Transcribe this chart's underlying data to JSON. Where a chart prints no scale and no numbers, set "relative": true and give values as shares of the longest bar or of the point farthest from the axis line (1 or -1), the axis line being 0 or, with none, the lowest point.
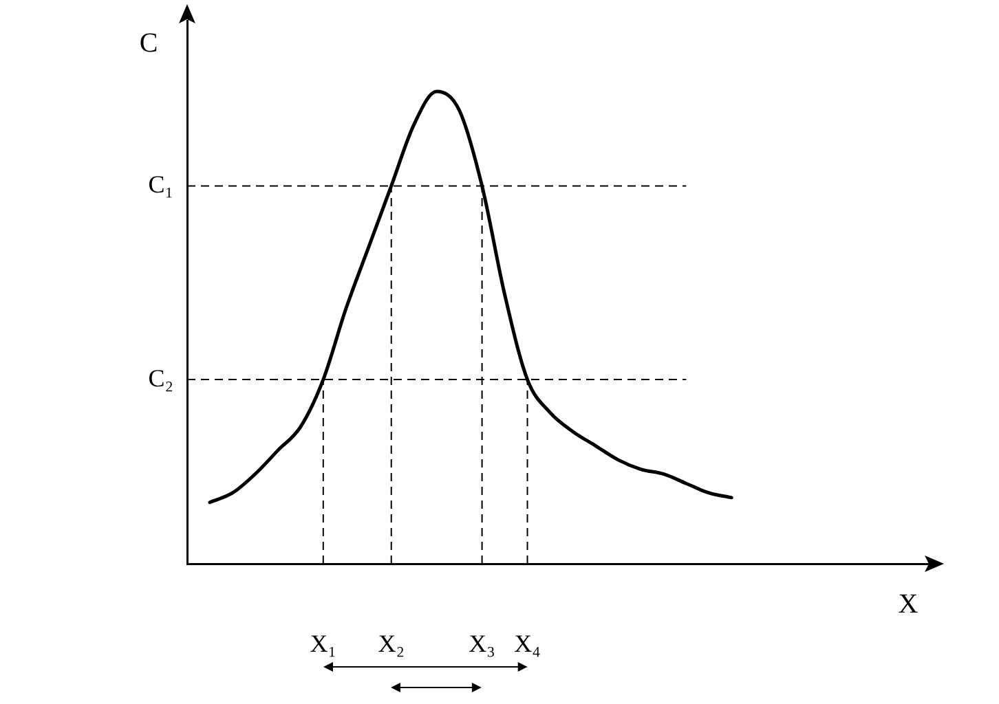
{
  "chart_data": {
    "type": "line",
    "relative": true,
    "xlabel": "X",
    "ylabel": "C",
    "categories": [
      null,
      null,
      null,
      null,
      null,
      null,
      "X₁",
      null,
      null,
      "X₂",
      null,
      null,
      null,
      "X₃",
      null,
      "X₄",
      null,
      null,
      null,
      null,
      null,
      null,
      null,
      null,
      null,
      null,
      null,
      null,
      null,
      null,
      null,
      null,
      null,
      null
    ],
    "series": [
      {
        "color": "#000000",
        "values": [
          null,
          0.13,
          0.15,
          0.19,
          0.24,
          0.29,
          0.39,
          0.54,
          0.67,
          0.8,
          0.93,
          1,
          0.96,
          0.8,
          0.57,
          0.39,
          0.32,
          0.28,
          0.25,
          0.22,
          0.2,
          0.19,
          0.17,
          0.15,
          0.14,
          null,
          null,
          null,
          null,
          null,
          null,
          null,
          null,
          null
        ]
      }
    ],
    "ref_lines": [
      {
        "axis": "y",
        "value": 0.8,
        "label": "C₁",
        "line_style": "dashed",
        "color": "#000000"
      },
      {
        "axis": "y",
        "value": 0.39,
        "label": "C₂",
        "line_style": "dashed",
        "color": "#000000"
      },
      {
        "axis": "x",
        "value": "X₁",
        "line_style": "dashed",
        "color": "#000000"
      },
      {
        "axis": "x",
        "value": "X₂",
        "line_style": "dashed",
        "color": "#000000"
      },
      {
        "axis": "x",
        "value": "X₃",
        "line_style": "dashed",
        "color": "#000000"
      },
      {
        "axis": "x",
        "value": "X₄",
        "line_style": "dashed",
        "color": "#000000"
      }
    ],
    "grid": false,
    "legend": false,
    "marker": "none",
    "line_style": "solid",
    "tick_labels": "x"
  }
}
